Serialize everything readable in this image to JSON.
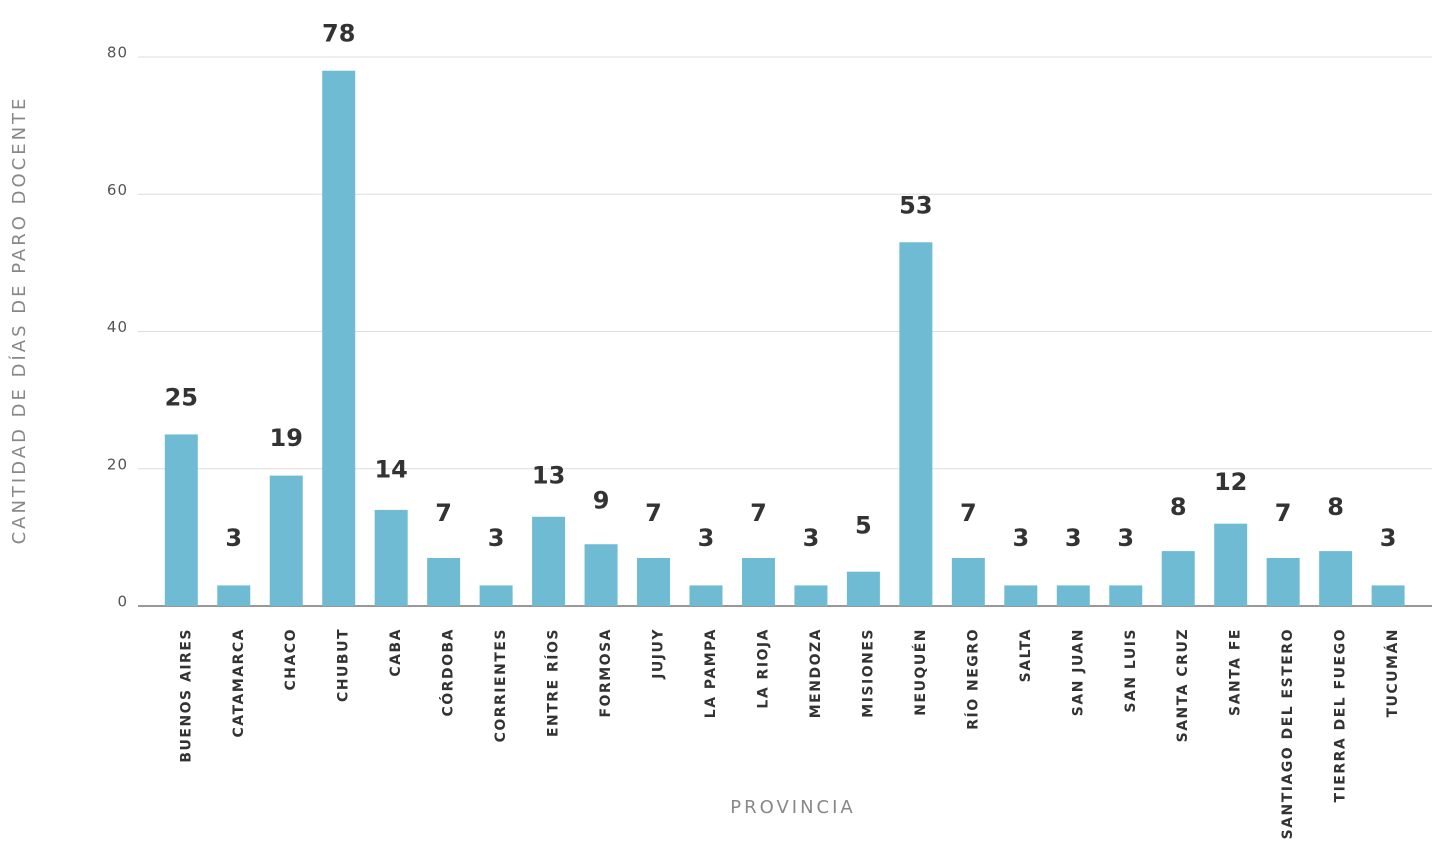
{
  "chart_data": {
    "type": "bar",
    "y_label": "CANTIDAD DE DÍAS DE PARO DOCENTE",
    "x_label": "PROVINCIA",
    "categories": [
      "BUENOS AIRES",
      "CATAMARCA",
      "CHACO",
      "CHUBUT",
      "CABA",
      "CÓRDOBA",
      "CORRIENTES",
      "ENTRE RÍOS",
      "FORMOSA",
      "JUJUY",
      "LA PAMPA",
      "LA RIOJA",
      "MENDOZA",
      "MISIONES",
      "NEUQUÉN",
      "RÍO NEGRO",
      "SALTA",
      "SAN JUAN",
      "SAN LUIS",
      "SANTA CRUZ",
      "SANTA FE",
      "SANTIAGO DEL ESTERO",
      "TIERRA DEL FUEGO",
      "TUCUMÁN"
    ],
    "values": [
      25,
      3,
      19,
      78,
      14,
      7,
      3,
      13,
      9,
      7,
      3,
      7,
      3,
      5,
      53,
      7,
      3,
      3,
      3,
      8,
      12,
      7,
      8,
      3
    ],
    "color": "#6fbbd3",
    "ylim": [
      0,
      80
    ],
    "yticks": [
      0,
      20,
      40,
      60,
      80
    ],
    "grid": true
  }
}
